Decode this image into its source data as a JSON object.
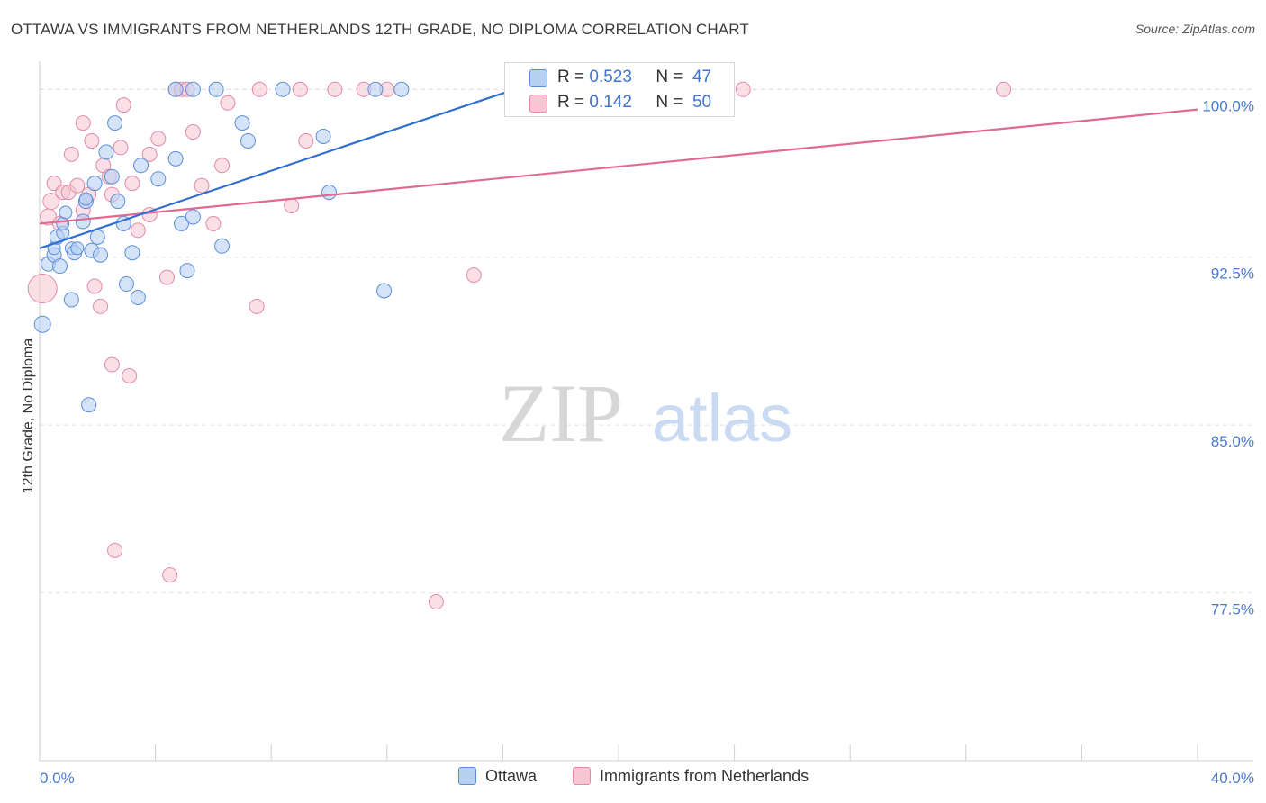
{
  "title": "OTTAWA VS IMMIGRANTS FROM NETHERLANDS 12TH GRADE, NO DIPLOMA CORRELATION CHART",
  "source": "Source: ZipAtlas.com",
  "watermark": {
    "zip": "ZIP",
    "atlas": "atlas"
  },
  "colors": {
    "ottawa_fill": "#b8d1f3",
    "ottawa_stroke": "#5b8ed8",
    "ottawa_line": "#2f6fd0",
    "neth_fill": "#f7c5d3",
    "neth_stroke": "#e38aa6",
    "neth_line": "#e06a93",
    "tick_text": "#4a7bd0",
    "grid": "#e3e3e3"
  },
  "legend": {
    "rows": [
      {
        "r_label": "R = ",
        "r_value": "0.523",
        "n_label": "N = ",
        "n_value": "47"
      },
      {
        "r_label": "R = ",
        "r_value": "0.142",
        "n_label": "N = ",
        "n_value": "50"
      }
    ]
  },
  "bottom_legend": {
    "ottawa": "Ottawa",
    "netherlands": "Immigrants from Netherlands"
  },
  "chart_data": {
    "type": "scatter",
    "title": "OTTAWA VS IMMIGRANTS FROM NETHERLANDS 12TH GRADE, NO DIPLOMA CORRELATION CHART",
    "xlabel": "",
    "ylabel": "12th Grade, No Diploma",
    "xlim": [
      0,
      40
    ],
    "ylim": [
      70,
      101.5
    ],
    "y_ticks": [
      77.5,
      85.0,
      92.5,
      100.0
    ],
    "y_tick_labels": [
      "77.5%",
      "85.0%",
      "92.5%",
      "100.0%"
    ],
    "x_tick_labels": [
      "0.0%",
      "40.0%"
    ],
    "series": [
      {
        "name": "Ottawa",
        "r": 0.523,
        "n": 47,
        "trend": {
          "x": [
            0,
            16.4
          ],
          "y": [
            92.9,
            100.0
          ]
        },
        "points": [
          [
            0.1,
            89.5,
            9
          ],
          [
            0.3,
            92.2,
            8
          ],
          [
            0.5,
            92.6,
            8
          ],
          [
            0.5,
            92.9,
            7
          ],
          [
            0.6,
            93.4,
            8
          ],
          [
            0.7,
            92.1,
            8
          ],
          [
            0.8,
            93.6,
            7
          ],
          [
            0.8,
            94.0,
            7
          ],
          [
            0.9,
            94.5,
            7
          ],
          [
            1.1,
            90.6,
            8
          ],
          [
            1.1,
            92.9,
            7
          ],
          [
            1.2,
            92.7,
            8
          ],
          [
            1.3,
            92.9,
            7
          ],
          [
            1.5,
            94.1,
            8
          ],
          [
            1.6,
            95.0,
            8
          ],
          [
            1.6,
            95.1,
            7
          ],
          [
            1.7,
            85.9,
            8
          ],
          [
            1.8,
            92.8,
            8
          ],
          [
            1.9,
            95.8,
            8
          ],
          [
            2.0,
            93.4,
            8
          ],
          [
            2.1,
            92.6,
            8
          ],
          [
            2.3,
            97.2,
            8
          ],
          [
            2.5,
            96.1,
            8
          ],
          [
            2.6,
            98.5,
            8
          ],
          [
            2.7,
            95.0,
            8
          ],
          [
            2.9,
            94.0,
            8
          ],
          [
            3.0,
            91.3,
            8
          ],
          [
            3.2,
            92.7,
            8
          ],
          [
            3.4,
            90.7,
            8
          ],
          [
            3.5,
            96.6,
            8
          ],
          [
            4.1,
            96.0,
            8
          ],
          [
            4.7,
            100.0,
            8
          ],
          [
            4.7,
            96.9,
            8
          ],
          [
            4.9,
            94.0,
            8
          ],
          [
            5.1,
            91.9,
            8
          ],
          [
            5.3,
            94.3,
            8
          ],
          [
            5.3,
            100.0,
            8
          ],
          [
            6.1,
            100.0,
            8
          ],
          [
            6.3,
            93.0,
            8
          ],
          [
            7.0,
            98.5,
            8
          ],
          [
            7.2,
            97.7,
            8
          ],
          [
            8.4,
            100.0,
            8
          ],
          [
            9.8,
            97.9,
            8
          ],
          [
            10.0,
            95.4,
            8
          ],
          [
            11.6,
            100.0,
            8
          ],
          [
            11.9,
            91.0,
            8
          ],
          [
            12.5,
            100.0,
            8
          ]
        ]
      },
      {
        "name": "Immigrants from Netherlands",
        "r": 0.142,
        "n": 50,
        "trend": {
          "x": [
            0,
            40
          ],
          "y": [
            94.0,
            99.1
          ]
        },
        "points": [
          [
            0.1,
            91.1,
            16
          ],
          [
            0.3,
            94.3,
            9
          ],
          [
            0.4,
            95.0,
            9
          ],
          [
            0.5,
            95.8,
            8
          ],
          [
            0.7,
            94.0,
            8
          ],
          [
            0.8,
            95.4,
            8
          ],
          [
            1.0,
            95.4,
            8
          ],
          [
            1.1,
            97.1,
            8
          ],
          [
            1.3,
            95.7,
            8
          ],
          [
            1.5,
            94.6,
            8
          ],
          [
            1.5,
            98.5,
            8
          ],
          [
            1.7,
            95.3,
            8
          ],
          [
            1.8,
            97.7,
            8
          ],
          [
            1.9,
            91.2,
            8
          ],
          [
            2.1,
            90.3,
            8
          ],
          [
            2.2,
            96.6,
            8
          ],
          [
            2.4,
            96.1,
            8
          ],
          [
            2.5,
            95.3,
            8
          ],
          [
            2.5,
            87.7,
            8
          ],
          [
            2.6,
            79.4,
            8
          ],
          [
            2.8,
            97.4,
            8
          ],
          [
            2.9,
            99.3,
            8
          ],
          [
            3.1,
            87.2,
            8
          ],
          [
            3.2,
            95.8,
            8
          ],
          [
            3.4,
            93.7,
            8
          ],
          [
            3.8,
            97.1,
            8
          ],
          [
            3.8,
            94.4,
            8
          ],
          [
            4.1,
            97.8,
            8
          ],
          [
            4.4,
            91.6,
            8
          ],
          [
            4.5,
            78.3,
            8
          ],
          [
            4.7,
            100.0,
            8
          ],
          [
            4.9,
            100.0,
            8
          ],
          [
            5.1,
            100.0,
            8
          ],
          [
            5.3,
            98.1,
            8
          ],
          [
            5.6,
            95.7,
            8
          ],
          [
            6.0,
            94.0,
            8
          ],
          [
            6.3,
            96.6,
            8
          ],
          [
            6.5,
            99.4,
            8
          ],
          [
            7.5,
            90.3,
            8
          ],
          [
            7.6,
            100.0,
            8
          ],
          [
            8.7,
            94.8,
            8
          ],
          [
            9.0,
            100.0,
            8
          ],
          [
            9.2,
            97.7,
            8
          ],
          [
            10.2,
            100.0,
            8
          ],
          [
            11.2,
            100.0,
            8
          ],
          [
            12.0,
            100.0,
            8
          ],
          [
            13.7,
            77.1,
            8
          ],
          [
            15.0,
            91.7,
            8
          ],
          [
            24.3,
            100.0,
            8
          ],
          [
            33.3,
            100.0,
            8
          ]
        ]
      }
    ]
  }
}
